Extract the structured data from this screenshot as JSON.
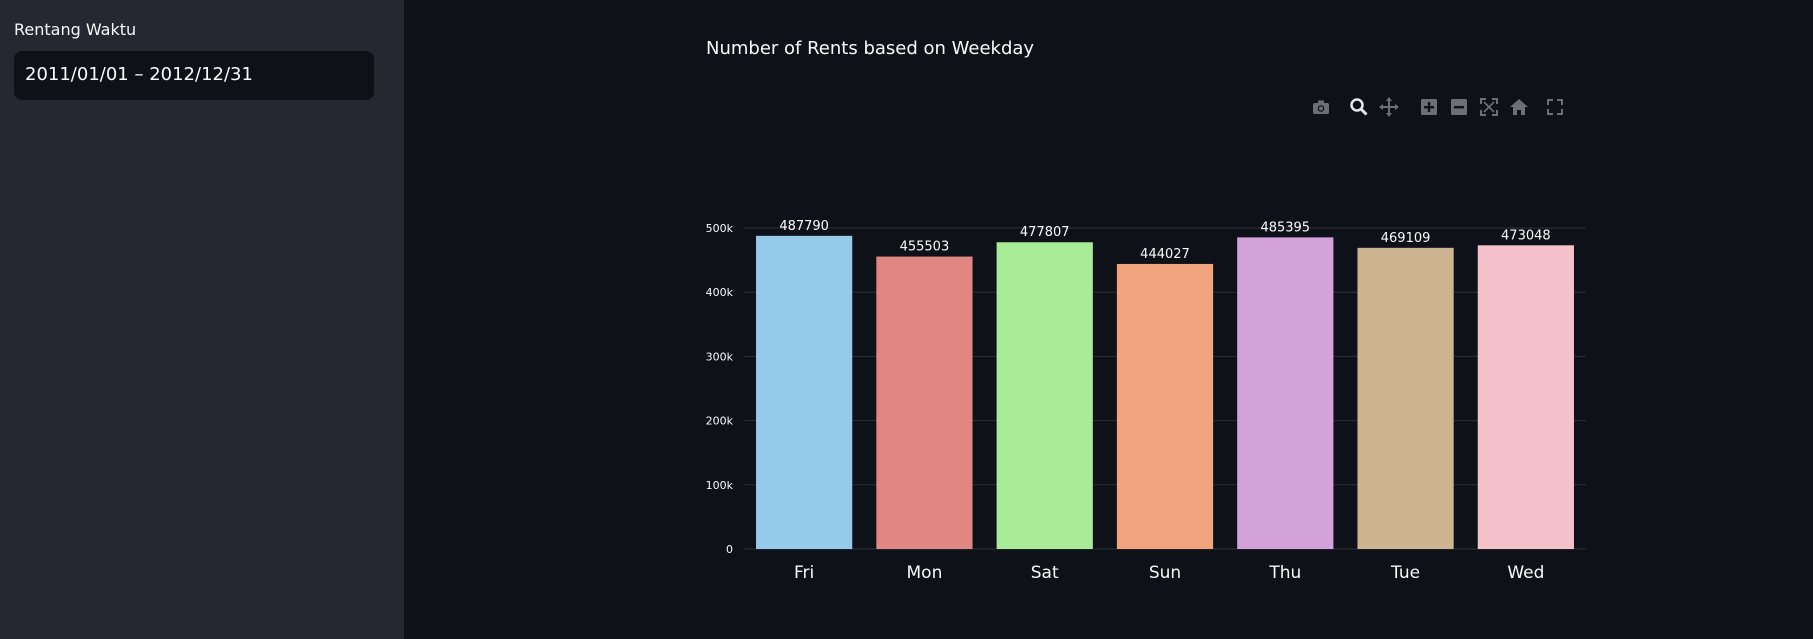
{
  "sidebar": {
    "date_range_label": "Rentang Waktu",
    "date_range_value": "2011/01/01 – 2012/12/31"
  },
  "modebar": {
    "icons": [
      "camera-icon",
      "zoom-icon",
      "pan-icon",
      "zoom-in-icon",
      "zoom-out-icon",
      "autoscale-icon",
      "home-icon",
      "fullscreen-icon"
    ]
  },
  "colors": {
    "background": "#0e1117",
    "sidebar": "#262730",
    "bars": [
      "#95cbe9",
      "#e08683",
      "#a9ec98",
      "#f2a47f",
      "#d3a2da",
      "#cdb591",
      "#f5c1ca"
    ]
  },
  "chart_data": {
    "type": "bar",
    "title": "Number of Rents based on Weekday",
    "xlabel": "",
    "ylabel": "",
    "categories": [
      "Fri",
      "Mon",
      "Sat",
      "Sun",
      "Thu",
      "Tue",
      "Wed"
    ],
    "values": [
      487790,
      455503,
      477807,
      444027,
      485395,
      469109,
      473048
    ],
    "ylim": [
      0,
      500000
    ],
    "yticks": [
      0,
      100000,
      200000,
      300000,
      400000,
      500000
    ],
    "ytick_labels": [
      "0",
      "100k",
      "200k",
      "300k",
      "400k",
      "500k"
    ],
    "grid": true,
    "legend": "none"
  }
}
